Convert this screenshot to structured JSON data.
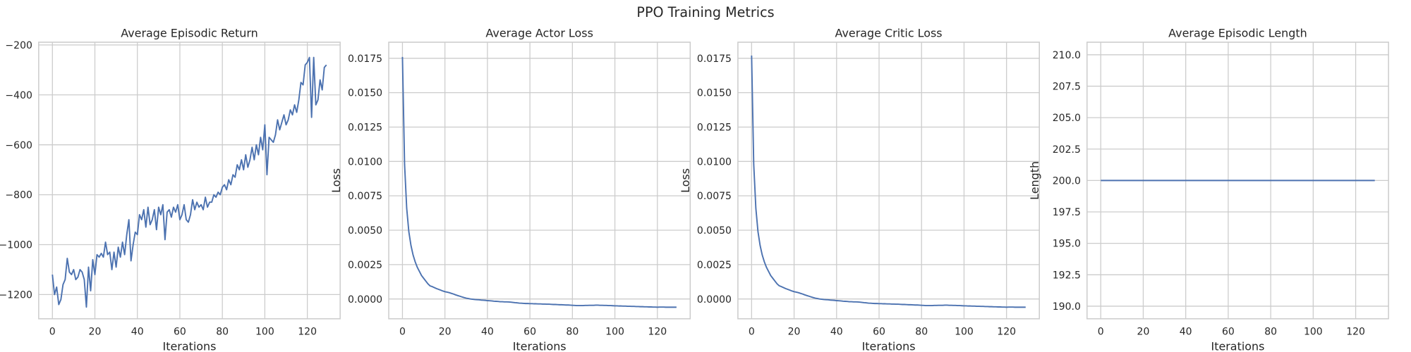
{
  "title": "PPO Training Metrics",
  "chart_data": [
    {
      "type": "line",
      "title": "Average Episodic Return",
      "xlabel": "Iterations",
      "color": "#4c72b0",
      "grid": true,
      "xlim": [
        -6.45,
        135.45
      ],
      "xticks": [
        0,
        20,
        40,
        60,
        80,
        100,
        120
      ],
      "ylim": [
        -1297,
        -189
      ],
      "yticks": [
        {
          "value": -200,
          "label": "−200"
        },
        {
          "value": -400,
          "label": "−400"
        },
        {
          "value": -600,
          "label": "−600"
        },
        {
          "value": -800,
          "label": "−800"
        },
        {
          "value": -1000,
          "label": "−1000"
        },
        {
          "value": -1200,
          "label": "−1200"
        }
      ],
      "x": [
        0,
        1,
        2,
        3,
        4,
        5,
        6,
        7,
        8,
        9,
        10,
        11,
        12,
        13,
        14,
        15,
        16,
        17,
        18,
        19,
        20,
        21,
        22,
        23,
        24,
        25,
        26,
        27,
        28,
        29,
        30,
        31,
        32,
        33,
        34,
        35,
        36,
        37,
        38,
        39,
        40,
        41,
        42,
        43,
        44,
        45,
        46,
        47,
        48,
        49,
        50,
        51,
        52,
        53,
        54,
        55,
        56,
        57,
        58,
        59,
        60,
        61,
        62,
        63,
        64,
        65,
        66,
        67,
        68,
        69,
        70,
        71,
        72,
        73,
        74,
        75,
        76,
        77,
        78,
        79,
        80,
        81,
        82,
        83,
        84,
        85,
        86,
        87,
        88,
        89,
        90,
        91,
        92,
        93,
        94,
        95,
        96,
        97,
        98,
        99,
        100,
        101,
        102,
        103,
        104,
        105,
        106,
        107,
        108,
        109,
        110,
        111,
        112,
        113,
        114,
        115,
        116,
        117,
        118,
        119,
        120,
        121,
        122,
        123,
        124,
        125,
        126,
        127,
        128,
        129
      ],
      "values": [
        -1120,
        -1200,
        -1170,
        -1240,
        -1220,
        -1160,
        -1140,
        -1055,
        -1110,
        -1120,
        -1100,
        -1140,
        -1130,
        -1100,
        -1110,
        -1140,
        -1250,
        -1090,
        -1185,
        -1060,
        -1120,
        -1040,
        -1050,
        -1035,
        -1050,
        -990,
        -1040,
        -1030,
        -1100,
        -1030,
        -1090,
        -1010,
        -1050,
        -990,
        -1040,
        -960,
        -900,
        -1065,
        -1000,
        -950,
        -960,
        -880,
        -900,
        -860,
        -930,
        -850,
        -920,
        -900,
        -860,
        -940,
        -850,
        -880,
        -840,
        -980,
        -870,
        -860,
        -890,
        -850,
        -870,
        -840,
        -900,
        -880,
        -840,
        -900,
        -910,
        -880,
        -820,
        -860,
        -830,
        -850,
        -840,
        -860,
        -810,
        -850,
        -830,
        -830,
        -800,
        -810,
        -790,
        -800,
        -770,
        -760,
        -780,
        -740,
        -760,
        -720,
        -730,
        -680,
        -700,
        -660,
        -700,
        -640,
        -690,
        -660,
        -610,
        -660,
        -600,
        -640,
        -570,
        -620,
        -520,
        -720,
        -570,
        -580,
        -590,
        -560,
        -500,
        -540,
        -510,
        -480,
        -520,
        -500,
        -460,
        -480,
        -440,
        -470,
        -420,
        -350,
        -360,
        -280,
        -270,
        -250,
        -490,
        -250,
        -440,
        -420,
        -340,
        -380,
        -290,
        -280
      ]
    },
    {
      "type": "line",
      "title": "Average Actor Loss",
      "xlabel": "Iterations",
      "ylabel": "Loss",
      "color": "#4c72b0",
      "grid": true,
      "xlim": [
        -6.45,
        135.45
      ],
      "xticks": [
        0,
        20,
        40,
        60,
        80,
        100,
        120
      ],
      "ylim": [
        -0.00144,
        0.01867
      ],
      "yticks": [
        {
          "value": 0,
          "label": "0.0000"
        },
        {
          "value": 0.0025,
          "label": "0.0025"
        },
        {
          "value": 0.005,
          "label": "0.0050"
        },
        {
          "value": 0.0075,
          "label": "0.0075"
        },
        {
          "value": 0.01,
          "label": "0.0100"
        },
        {
          "value": 0.0125,
          "label": "0.0125"
        },
        {
          "value": 0.015,
          "label": "0.0150"
        },
        {
          "value": 0.0175,
          "label": "0.0175"
        }
      ],
      "x": [
        0,
        1,
        2,
        3,
        4,
        5,
        6,
        7,
        8,
        9,
        10,
        11,
        12,
        13,
        14,
        15,
        16,
        17,
        18,
        19,
        20,
        21,
        22,
        23,
        24,
        25,
        26,
        27,
        28,
        29,
        30,
        31,
        32,
        33,
        34,
        35,
        36,
        37,
        38,
        39,
        40,
        41,
        42,
        43,
        44,
        45,
        46,
        47,
        48,
        49,
        50,
        51,
        52,
        53,
        54,
        55,
        56,
        57,
        58,
        59,
        60,
        61,
        62,
        63,
        64,
        65,
        66,
        67,
        68,
        69,
        70,
        71,
        72,
        73,
        74,
        75,
        76,
        77,
        78,
        79,
        80,
        81,
        82,
        83,
        84,
        85,
        86,
        87,
        88,
        89,
        90,
        91,
        92,
        93,
        94,
        95,
        96,
        97,
        98,
        99,
        100,
        101,
        102,
        103,
        104,
        105,
        106,
        107,
        108,
        109,
        110,
        111,
        112,
        113,
        114,
        115,
        116,
        117,
        118,
        119,
        120,
        121,
        122,
        123,
        124,
        125,
        126,
        127,
        128,
        129
      ],
      "values": [
        0.0176,
        0.0098,
        0.0066,
        0.0049,
        0.0039,
        0.0032,
        0.0027,
        0.0023,
        0.002,
        0.0017,
        0.0015,
        0.0013,
        0.0011,
        0.00095,
        0.0009,
        0.00083,
        0.00076,
        0.0007,
        0.00064,
        0.00058,
        0.00053,
        0.0005,
        0.00046,
        0.00041,
        0.00036,
        0.0003,
        0.00025,
        0.0002,
        0.00015,
        0.0001,
        6e-05,
        3e-05,
        0.0,
        -2e-05,
        -4e-05,
        -5e-05,
        -6e-05,
        -8e-05,
        -9e-05,
        -0.0001,
        -0.00012,
        -0.00013,
        -0.00014,
        -0.00016,
        -0.00017,
        -0.00018,
        -0.0002,
        -0.0002,
        -0.00021,
        -0.00021,
        -0.00022,
        -0.00023,
        -0.00025,
        -0.00027,
        -0.00028,
        -0.0003,
        -0.00031,
        -0.00032,
        -0.00033,
        -0.00033,
        -0.00034,
        -0.00034,
        -0.00035,
        -0.00035,
        -0.00036,
        -0.00036,
        -0.00037,
        -0.00037,
        -0.00038,
        -0.00038,
        -0.00039,
        -0.0004,
        -0.0004,
        -0.00041,
        -0.00042,
        -0.00042,
        -0.00043,
        -0.00044,
        -0.00044,
        -0.00045,
        -0.00046,
        -0.00047,
        -0.00048,
        -0.00048,
        -0.00048,
        -0.00048,
        -0.00047,
        -0.00047,
        -0.00046,
        -0.00046,
        -0.00046,
        -0.00045,
        -0.00045,
        -0.00046,
        -0.00046,
        -0.00047,
        -0.00047,
        -0.00048,
        -0.00048,
        -0.00049,
        -0.0005,
        -0.0005,
        -0.00051,
        -0.00051,
        -0.00052,
        -0.00052,
        -0.00053,
        -0.00053,
        -0.00054,
        -0.00054,
        -0.00055,
        -0.00055,
        -0.00056,
        -0.00056,
        -0.00057,
        -0.00057,
        -0.00058,
        -0.00058,
        -0.00059,
        -0.00059,
        -0.0006,
        -0.00059,
        -0.00059,
        -0.00059,
        -0.0006,
        -0.0006,
        -0.0006,
        -0.0006,
        -0.0006,
        -0.0006
      ]
    },
    {
      "type": "line",
      "title": "Average Critic Loss",
      "xlabel": "Iterations",
      "ylabel": "Loss",
      "color": "#4c72b0",
      "grid": true,
      "xlim": [
        -6.45,
        135.45
      ],
      "xticks": [
        0,
        20,
        40,
        60,
        80,
        100,
        120
      ],
      "ylim": [
        -0.00144,
        0.01867
      ],
      "yticks": [
        {
          "value": 0,
          "label": "0.0000"
        },
        {
          "value": 0.0025,
          "label": "0.0025"
        },
        {
          "value": 0.005,
          "label": "0.0050"
        },
        {
          "value": 0.0075,
          "label": "0.0075"
        },
        {
          "value": 0.01,
          "label": "0.0100"
        },
        {
          "value": 0.0125,
          "label": "0.0125"
        },
        {
          "value": 0.015,
          "label": "0.0150"
        },
        {
          "value": 0.0175,
          "label": "0.0175"
        }
      ],
      "x": [
        0,
        1,
        2,
        3,
        4,
        5,
        6,
        7,
        8,
        9,
        10,
        11,
        12,
        13,
        14,
        15,
        16,
        17,
        18,
        19,
        20,
        21,
        22,
        23,
        24,
        25,
        26,
        27,
        28,
        29,
        30,
        31,
        32,
        33,
        34,
        35,
        36,
        37,
        38,
        39,
        40,
        41,
        42,
        43,
        44,
        45,
        46,
        47,
        48,
        49,
        50,
        51,
        52,
        53,
        54,
        55,
        56,
        57,
        58,
        59,
        60,
        61,
        62,
        63,
        64,
        65,
        66,
        67,
        68,
        69,
        70,
        71,
        72,
        73,
        74,
        75,
        76,
        77,
        78,
        79,
        80,
        81,
        82,
        83,
        84,
        85,
        86,
        87,
        88,
        89,
        90,
        91,
        92,
        93,
        94,
        95,
        96,
        97,
        98,
        99,
        100,
        101,
        102,
        103,
        104,
        105,
        106,
        107,
        108,
        109,
        110,
        111,
        112,
        113,
        114,
        115,
        116,
        117,
        118,
        119,
        120,
        121,
        122,
        123,
        124,
        125,
        126,
        127,
        128,
        129
      ],
      "values": [
        0.0177,
        0.0098,
        0.0066,
        0.0049,
        0.0039,
        0.0032,
        0.0027,
        0.0023,
        0.002,
        0.0017,
        0.0015,
        0.0013,
        0.0011,
        0.00096,
        0.0009,
        0.00083,
        0.00076,
        0.0007,
        0.00064,
        0.00058,
        0.00053,
        0.0005,
        0.00046,
        0.00041,
        0.00036,
        0.0003,
        0.00025,
        0.0002,
        0.00015,
        0.0001,
        6e-05,
        3e-05,
        0.0,
        -2e-05,
        -4e-05,
        -5e-05,
        -6e-05,
        -8e-05,
        -9e-05,
        -0.0001,
        -0.00012,
        -0.00013,
        -0.00014,
        -0.00016,
        -0.00017,
        -0.00018,
        -0.0002,
        -0.0002,
        -0.00021,
        -0.00021,
        -0.00022,
        -0.00023,
        -0.00025,
        -0.00027,
        -0.00028,
        -0.0003,
        -0.00031,
        -0.00032,
        -0.00033,
        -0.00033,
        -0.00034,
        -0.00034,
        -0.00035,
        -0.00035,
        -0.00036,
        -0.00036,
        -0.00037,
        -0.00037,
        -0.00038,
        -0.00038,
        -0.00039,
        -0.0004,
        -0.0004,
        -0.00041,
        -0.00042,
        -0.00042,
        -0.00043,
        -0.00044,
        -0.00044,
        -0.00045,
        -0.00046,
        -0.00047,
        -0.00048,
        -0.00048,
        -0.00048,
        -0.00048,
        -0.00047,
        -0.00047,
        -0.00046,
        -0.00046,
        -0.00046,
        -0.00045,
        -0.00045,
        -0.00046,
        -0.00046,
        -0.00047,
        -0.00047,
        -0.00048,
        -0.00048,
        -0.00049,
        -0.0005,
        -0.0005,
        -0.00051,
        -0.00051,
        -0.00052,
        -0.00052,
        -0.00053,
        -0.00053,
        -0.00054,
        -0.00054,
        -0.00055,
        -0.00055,
        -0.00056,
        -0.00056,
        -0.00057,
        -0.00057,
        -0.00058,
        -0.00058,
        -0.00059,
        -0.00059,
        -0.0006,
        -0.00059,
        -0.00059,
        -0.00059,
        -0.0006,
        -0.0006,
        -0.0006,
        -0.0006,
        -0.0006,
        -0.0006
      ]
    },
    {
      "type": "line",
      "title": "Average Episodic Length",
      "xlabel": "Iterations",
      "ylabel": "Length",
      "color": "#4c72b0",
      "grid": true,
      "xlim": [
        -6.45,
        135.45
      ],
      "xticks": [
        0,
        20,
        40,
        60,
        80,
        100,
        120
      ],
      "ylim": [
        189,
        211
      ],
      "yticks": [
        {
          "value": 190,
          "label": "190.0"
        },
        {
          "value": 192.5,
          "label": "192.5"
        },
        {
          "value": 195,
          "label": "195.0"
        },
        {
          "value": 197.5,
          "label": "197.5"
        },
        {
          "value": 200,
          "label": "200.0"
        },
        {
          "value": 202.5,
          "label": "202.5"
        },
        {
          "value": 205,
          "label": "205.0"
        },
        {
          "value": 207.5,
          "label": "207.5"
        },
        {
          "value": 210,
          "label": "210.0"
        }
      ],
      "x": [
        0,
        1,
        2,
        3,
        4,
        5,
        6,
        7,
        8,
        9,
        10,
        11,
        12,
        13,
        14,
        15,
        16,
        17,
        18,
        19,
        20,
        21,
        22,
        23,
        24,
        25,
        26,
        27,
        28,
        29,
        30,
        31,
        32,
        33,
        34,
        35,
        36,
        37,
        38,
        39,
        40,
        41,
        42,
        43,
        44,
        45,
        46,
        47,
        48,
        49,
        50,
        51,
        52,
        53,
        54,
        55,
        56,
        57,
        58,
        59,
        60,
        61,
        62,
        63,
        64,
        65,
        66,
        67,
        68,
        69,
        70,
        71,
        72,
        73,
        74,
        75,
        76,
        77,
        78,
        79,
        80,
        81,
        82,
        83,
        84,
        85,
        86,
        87,
        88,
        89,
        90,
        91,
        92,
        93,
        94,
        95,
        96,
        97,
        98,
        99,
        100,
        101,
        102,
        103,
        104,
        105,
        106,
        107,
        108,
        109,
        110,
        111,
        112,
        113,
        114,
        115,
        116,
        117,
        118,
        119,
        120,
        121,
        122,
        123,
        124,
        125,
        126,
        127,
        128,
        129
      ],
      "values": [
        200,
        200,
        200,
        200,
        200,
        200,
        200,
        200,
        200,
        200,
        200,
        200,
        200,
        200,
        200,
        200,
        200,
        200,
        200,
        200,
        200,
        200,
        200,
        200,
        200,
        200,
        200,
        200,
        200,
        200,
        200,
        200,
        200,
        200,
        200,
        200,
        200,
        200,
        200,
        200,
        200,
        200,
        200,
        200,
        200,
        200,
        200,
        200,
        200,
        200,
        200,
        200,
        200,
        200,
        200,
        200,
        200,
        200,
        200,
        200,
        200,
        200,
        200,
        200,
        200,
        200,
        200,
        200,
        200,
        200,
        200,
        200,
        200,
        200,
        200,
        200,
        200,
        200,
        200,
        200,
        200,
        200,
        200,
        200,
        200,
        200,
        200,
        200,
        200,
        200,
        200,
        200,
        200,
        200,
        200,
        200,
        200,
        200,
        200,
        200,
        200,
        200,
        200,
        200,
        200,
        200,
        200,
        200,
        200,
        200,
        200,
        200,
        200,
        200,
        200,
        200,
        200,
        200,
        200,
        200,
        200,
        200,
        200,
        200,
        200,
        200,
        200,
        200,
        200,
        200
      ]
    }
  ]
}
